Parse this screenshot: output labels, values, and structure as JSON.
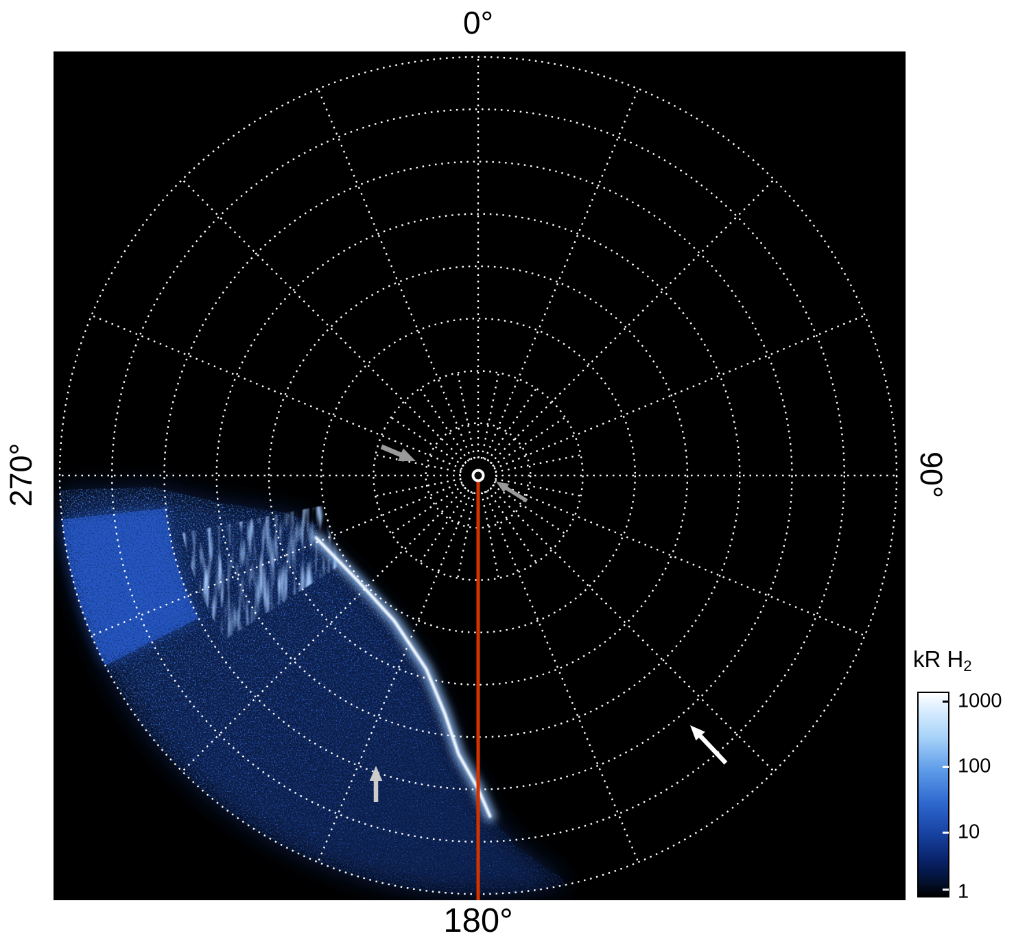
{
  "figure": {
    "background": "#ffffff",
    "plot_background": "#000000"
  },
  "labels": {
    "top": "0°",
    "right": "90°",
    "bottom": "180°",
    "left": "270°"
  },
  "colorbar": {
    "title": "kR H",
    "title_sub": "2",
    "ticks": [
      "1000",
      "100",
      "10",
      "1"
    ],
    "scale": "log",
    "min": 1,
    "max": 1000,
    "gradient": [
      "#ffffff 0%",
      "#dbeeff 8%",
      "#a6d2f8 22%",
      "#5e9be9 38%",
      "#2f68cf 54%",
      "#16409f 70%",
      "#081f62 84%",
      "#02102f 93%",
      "#000000 100%"
    ]
  },
  "annotations": {
    "arrows": [
      {
        "name": "gray-arrow-left-of-center",
        "color": "#9a9a9a",
        "tail": [
          478,
          576
        ],
        "head": [
          528,
          597
        ],
        "head_len": 24,
        "width": 7
      },
      {
        "name": "gray-arrow-right-of-center",
        "color": "#9a9a9a",
        "tail": [
          690,
          655
        ],
        "head": [
          645,
          627
        ],
        "head_len": 18,
        "width": 5.5
      },
      {
        "name": "white-arrow-lower-right",
        "color": "#ffffff",
        "tail": [
          980,
          1037
        ],
        "head": [
          928,
          982
        ],
        "head_len": 22,
        "width": 6.5
      },
      {
        "name": "gray-arrow-in-aurora",
        "color": "#cccccc",
        "tail": [
          470,
          1094
        ],
        "head": [
          470,
          1041
        ],
        "head_len": 22,
        "width": 6.5
      }
    ]
  },
  "chart_data": {
    "type": "polar-image",
    "projection": "polar",
    "angular_tick_labels": [
      "0°",
      "90°",
      "180°",
      "270°"
    ],
    "grid": {
      "radial_rings": 8,
      "spoke_step_deg": 22.5,
      "inner_spoke_step_deg": 11.25,
      "inner_spoke_extent_frac": 0.25,
      "inner_ring_frac": 0.044,
      "style": "dotted",
      "color": "#ffffff"
    },
    "meridian_marker": {
      "angle_deg": 180,
      "color": "#d43300"
    },
    "pole_marker": {
      "shape": "circle",
      "color": "#ffffff"
    },
    "colorbar": {
      "label": "kR H2",
      "scale": "log",
      "tick_values": [
        1000,
        100,
        10,
        1
      ]
    },
    "emission": {
      "description": "H2 auroral emission patch spanning ~170°-268° azimuth, bright narrow arc plus diffuse speckled emission out to the outer ring",
      "outer_az": [
        168,
        268
      ],
      "inner_boundary_azr_frac": [
        [
          268,
          0.78
        ],
        [
          264,
          0.62
        ],
        [
          259,
          0.47
        ],
        [
          253,
          0.4
        ],
        [
          249,
          0.415
        ],
        [
          229,
          0.382
        ],
        [
          210,
          0.401
        ],
        [
          195,
          0.479
        ],
        [
          188,
          0.574
        ],
        [
          184,
          0.668
        ],
        [
          180,
          0.749
        ],
        [
          178,
          0.815
        ],
        [
          174,
          0.89
        ],
        [
          170,
          0.955
        ],
        [
          168,
          0.985
        ]
      ],
      "bright_arc_azr_frac": [
        [
          249,
          0.415
        ],
        [
          229,
          0.382
        ],
        [
          210,
          0.401
        ],
        [
          195,
          0.479
        ],
        [
          188,
          0.574
        ],
        [
          184,
          0.668
        ],
        [
          180,
          0.749
        ],
        [
          178,
          0.815
        ]
      ],
      "streak_patch": {
        "az": [
          237,
          259
        ],
        "r_frac": [
          0.38,
          0.72
        ]
      },
      "dense_patch": {
        "az": [
          243,
          264
        ],
        "r_frac": [
          0.75,
          1.0
        ]
      },
      "colors": {
        "wash": "#123a8c",
        "speckle": "#2e6fe0",
        "speckle_bright": "#79aaff",
        "dense": "#2558c8",
        "streaks": "#a8ccff",
        "arc_core": "#f2f9ff",
        "arc_glow": "#9cc8ff"
      }
    }
  }
}
